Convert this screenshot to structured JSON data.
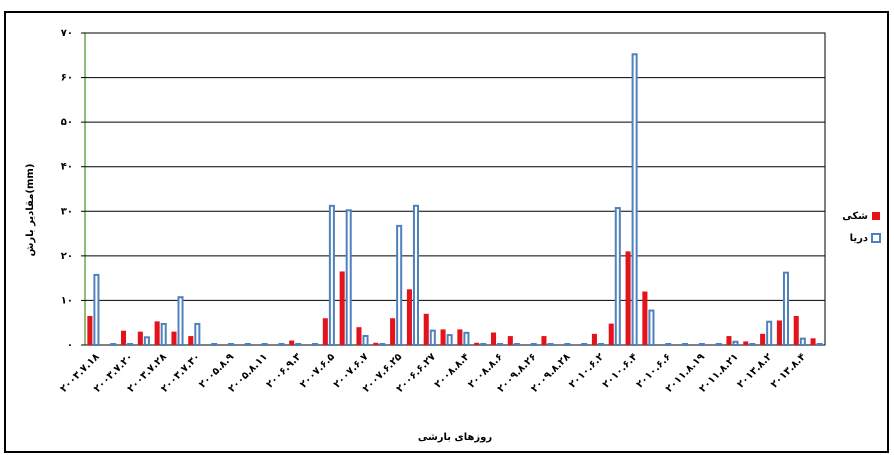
{
  "chart_data": {
    "type": "bar",
    "y_label": "مقادیر بارش(mm)",
    "x_label": "روزهای بارشی",
    "categories": [
      "۲۰۰۳.۷.۱۸",
      null,
      "۲۰۰۳.۷.۲۰",
      null,
      "۲۰۰۳.۷.۲۸",
      null,
      "۲۰۰۳.۷.۳۰",
      null,
      "۲۰۰۵.۸.۹",
      null,
      "۲۰۰۵.۸.۱۱",
      null,
      "۲۰۰۶.۹.۳",
      null,
      "۲۰۰۷.۶.۵",
      null,
      "۲۰۰۷.۶.۷",
      null,
      "۲۰۰۷.۶.۲۵",
      null,
      "۲۰۰۶.۶.۲۷",
      null,
      "۲۰۰۸.۸.۴",
      null,
      "۲۰۰۸.۸.۶",
      null,
      "۲۰۰۹.۸.۲۶",
      null,
      "۲۰۰۹.۸.۲۸",
      null,
      "۲۰۱۰.۶.۲",
      null,
      "۲۰۱۰.۶.۴",
      null,
      "۲۰۱۰.۶.۶",
      null,
      "۲۰۱۱.۸.۱۹",
      null,
      "۲۰۱۱.۸.۲۱",
      null,
      "۲۰۱۳.۸.۲",
      null,
      "۲۰۱۳.۸.۴",
      null
    ],
    "series": [
      {
        "name": "شکی",
        "color": "#e3131b",
        "fill": true,
        "values": [
          6.5,
          0,
          3.2,
          3,
          5.3,
          3,
          2,
          0,
          0,
          0,
          0,
          0,
          1,
          0,
          6,
          16.5,
          4,
          0.5,
          6,
          12.5,
          7,
          3.5,
          3.5,
          0.5,
          2.8,
          2,
          0,
          2,
          0,
          0,
          2.5,
          4.8,
          21,
          12,
          0,
          0,
          0,
          0,
          2,
          0.8,
          2.5,
          5.5,
          6.5,
          1.5
        ]
      },
      {
        "name": "دریا",
        "color": "#4f81bd",
        "fill": false,
        "values": [
          15.5,
          0,
          0,
          1.5,
          4.5,
          10.5,
          4.5,
          0,
          0,
          0,
          0,
          0,
          0,
          0,
          31,
          30,
          1.8,
          0,
          26.5,
          31,
          3,
          2,
          2.5,
          0,
          0,
          0,
          0,
          0,
          0,
          0,
          0,
          30.5,
          65,
          7.5,
          0,
          0,
          0,
          0,
          0.5,
          0,
          5,
          16,
          1.2,
          0
        ]
      }
    ],
    "ylim": [
      0,
      70
    ],
    "yticks": [
      {
        "value": 0,
        "label": "۰"
      },
      {
        "value": 10,
        "label": "۱۰"
      },
      {
        "value": 20,
        "label": "۲۰"
      },
      {
        "value": 30,
        "label": "۳۰"
      },
      {
        "value": 40,
        "label": "۴۰"
      },
      {
        "value": 50,
        "label": "۵۰"
      },
      {
        "value": 60,
        "label": "۶۰"
      },
      {
        "value": 70,
        "label": "۷۰"
      }
    ],
    "grid": true,
    "legend": "right"
  }
}
